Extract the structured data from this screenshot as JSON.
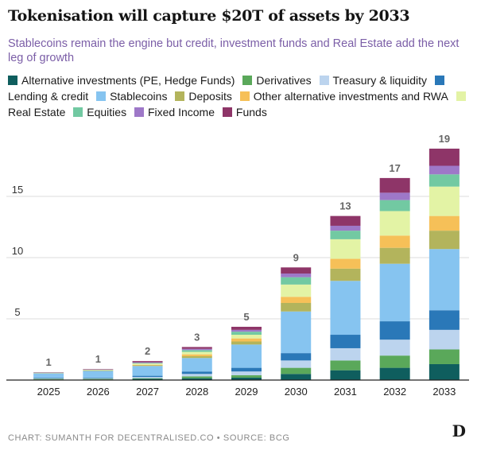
{
  "title": "Tokenisation will capture $20T of assets by 2033",
  "subtitle": "Stablecoins remain the engine but credit, investment funds and Real Estate add the next leg of growth",
  "footer": "CHART: SUMANTH FOR DECENTRALISED.CO • SOURCE: BCG",
  "logo": "D",
  "chart_data": {
    "type": "bar",
    "stacked": true,
    "title": "Tokenisation will capture $20T of assets by 2033",
    "subtitle": "Stablecoins remain the engine but credit, investment funds and Real Estate add the next leg of growth",
    "xlabel": "",
    "ylabel": "",
    "ylim": [
      0,
      20
    ],
    "yticks": [
      5,
      10,
      15
    ],
    "grid": true,
    "legend_position": "top",
    "categories": [
      "2025",
      "2026",
      "2027",
      "2028",
      "2029",
      "2030",
      "2031",
      "2032",
      "2033"
    ],
    "totals_labels": [
      "1",
      "1",
      "2",
      "3",
      "5",
      "9",
      "13",
      "17",
      "19"
    ],
    "series": [
      {
        "name": "Alternative investments (PE, Hedge Funds)",
        "color": "#0f5e5e",
        "values": [
          0.05,
          0.05,
          0.1,
          0.15,
          0.2,
          0.5,
          0.8,
          1.0,
          1.3
        ]
      },
      {
        "name": "Derivatives",
        "color": "#5aa85a",
        "values": [
          0.05,
          0.05,
          0.05,
          0.15,
          0.2,
          0.5,
          0.8,
          1.0,
          1.2
        ]
      },
      {
        "name": "Treasury & liquidity",
        "color": "#bcd4ee",
        "values": [
          0.05,
          0.05,
          0.1,
          0.2,
          0.3,
          0.6,
          1.0,
          1.3,
          1.6
        ]
      },
      {
        "name": "Lending & credit",
        "color": "#2a78b8",
        "values": [
          0.05,
          0.05,
          0.1,
          0.2,
          0.3,
          0.6,
          1.1,
          1.5,
          1.6
        ]
      },
      {
        "name": "Stablecoins",
        "color": "#86c4f0",
        "values": [
          0.35,
          0.55,
          0.8,
          1.1,
          1.9,
          3.4,
          4.4,
          4.7,
          5.0
        ]
      },
      {
        "name": "Deposits",
        "color": "#b3b45c",
        "values": [
          0.02,
          0.03,
          0.05,
          0.15,
          0.25,
          0.7,
          1.0,
          1.3,
          1.5
        ]
      },
      {
        "name": "Other alternative investments and RWA",
        "color": "#f6c058",
        "values": [
          0.01,
          0.02,
          0.05,
          0.15,
          0.25,
          0.5,
          0.8,
          1.0,
          1.2
        ]
      },
      {
        "name": "Real Estate",
        "color": "#e3f3a5",
        "values": [
          0.02,
          0.03,
          0.1,
          0.2,
          0.3,
          1.0,
          1.6,
          2.0,
          2.4
        ]
      },
      {
        "name": "Equities",
        "color": "#72c9a2",
        "values": [
          0.01,
          0.02,
          0.05,
          0.15,
          0.25,
          0.6,
          0.7,
          0.9,
          1.0
        ]
      },
      {
        "name": "Fixed Income",
        "color": "#9e78c8",
        "values": [
          0.02,
          0.02,
          0.05,
          0.1,
          0.15,
          0.3,
          0.4,
          0.6,
          0.7
        ]
      },
      {
        "name": "Funds",
        "color": "#8e3568",
        "values": [
          0.02,
          0.03,
          0.1,
          0.15,
          0.25,
          0.5,
          0.8,
          1.2,
          1.4
        ]
      }
    ]
  }
}
